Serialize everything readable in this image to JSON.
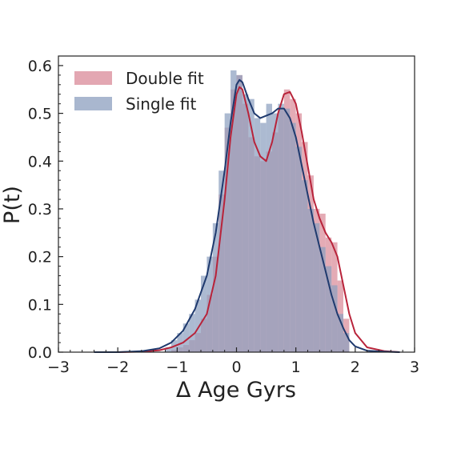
{
  "chart_data": {
    "type": "area",
    "title": "",
    "xlabel": "Δ Age Gyrs",
    "ylabel": "P(t)",
    "xlim": [
      -3,
      3
    ],
    "ylim": [
      0,
      0.62
    ],
    "xticks": [
      -3,
      -2,
      -1,
      0,
      1,
      2,
      3
    ],
    "xtick_labels": [
      "−3",
      "−2",
      "−1",
      "0",
      "1",
      "2",
      "3"
    ],
    "yticks": [
      0.0,
      0.1,
      0.2,
      0.3,
      0.4,
      0.5,
      0.6
    ],
    "ytick_labels": [
      "0.0",
      "0.1",
      "0.2",
      "0.3",
      "0.4",
      "0.5",
      "0.6"
    ],
    "legend_position": "top-left",
    "grid": false,
    "bin_width": 0.1,
    "bin_centers": [
      -1.15,
      -1.05,
      -0.95,
      -0.85,
      -0.75,
      -0.65,
      -0.55,
      -0.45,
      -0.35,
      -0.25,
      -0.15,
      -0.05,
      0.05,
      0.15,
      0.25,
      0.35,
      0.45,
      0.55,
      0.65,
      0.75,
      0.85,
      0.95,
      1.05,
      1.15,
      1.25,
      1.35,
      1.45,
      1.55,
      1.65,
      1.75,
      1.85
    ],
    "series": [
      {
        "name": "Double fit",
        "color": "#b8233a",
        "fill": "#d98a98",
        "histogram": [
          0.0,
          0.005,
          0.01,
          0.015,
          0.025,
          0.04,
          0.07,
          0.12,
          0.2,
          0.33,
          0.47,
          0.55,
          0.58,
          0.52,
          0.45,
          0.41,
          0.4,
          0.42,
          0.46,
          0.51,
          0.55,
          0.53,
          0.5,
          0.44,
          0.37,
          0.3,
          0.29,
          0.24,
          0.23,
          0.15,
          0.07
        ],
        "kde_x": [
          -2.4,
          -2.0,
          -1.6,
          -1.3,
          -1.1,
          -0.9,
          -0.7,
          -0.5,
          -0.35,
          -0.2,
          -0.1,
          0.0,
          0.05,
          0.1,
          0.2,
          0.3,
          0.4,
          0.5,
          0.6,
          0.7,
          0.8,
          0.9,
          1.0,
          1.1,
          1.2,
          1.3,
          1.4,
          1.5,
          1.6,
          1.7,
          1.8,
          1.9,
          2.0,
          2.2,
          2.5,
          2.75
        ],
        "kde_y": [
          0.0,
          0.0,
          0.001,
          0.004,
          0.01,
          0.02,
          0.04,
          0.08,
          0.16,
          0.32,
          0.45,
          0.54,
          0.555,
          0.55,
          0.5,
          0.44,
          0.41,
          0.4,
          0.44,
          0.5,
          0.54,
          0.545,
          0.52,
          0.46,
          0.39,
          0.32,
          0.28,
          0.25,
          0.23,
          0.2,
          0.14,
          0.08,
          0.04,
          0.01,
          0.002,
          0.0
        ]
      },
      {
        "name": "Single fit",
        "color": "#1f3a6e",
        "fill": "#8c9fbf",
        "histogram": [
          0.01,
          0.025,
          0.04,
          0.06,
          0.08,
          0.11,
          0.16,
          0.2,
          0.27,
          0.38,
          0.5,
          0.59,
          0.58,
          0.54,
          0.53,
          0.49,
          0.48,
          0.52,
          0.5,
          0.52,
          0.51,
          0.48,
          0.43,
          0.36,
          0.3,
          0.27,
          0.22,
          0.18,
          0.14,
          0.08,
          0.04
        ],
        "kde_x": [
          -2.4,
          -2.0,
          -1.6,
          -1.3,
          -1.1,
          -0.9,
          -0.7,
          -0.5,
          -0.35,
          -0.2,
          -0.1,
          0.0,
          0.05,
          0.1,
          0.2,
          0.3,
          0.4,
          0.5,
          0.6,
          0.7,
          0.8,
          0.9,
          1.0,
          1.1,
          1.2,
          1.3,
          1.4,
          1.5,
          1.6,
          1.7,
          1.8,
          1.9,
          2.0,
          2.2,
          2.5,
          2.75
        ],
        "kde_y": [
          0.0,
          0.0,
          0.002,
          0.008,
          0.02,
          0.045,
          0.09,
          0.16,
          0.25,
          0.38,
          0.48,
          0.56,
          0.57,
          0.565,
          0.53,
          0.5,
          0.49,
          0.495,
          0.5,
          0.51,
          0.51,
          0.49,
          0.45,
          0.39,
          0.33,
          0.27,
          0.22,
          0.17,
          0.12,
          0.08,
          0.05,
          0.025,
          0.012,
          0.003,
          0.001,
          0.0
        ]
      }
    ]
  }
}
